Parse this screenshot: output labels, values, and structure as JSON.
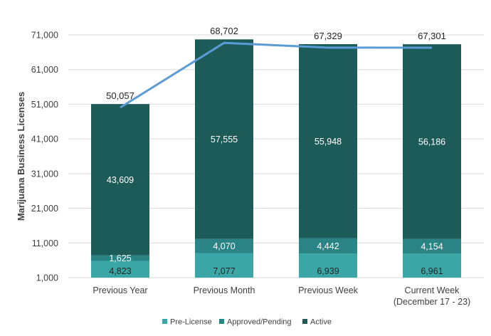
{
  "chart_data": {
    "type": "bar",
    "stacked": true,
    "categories": [
      [
        "Previous Year"
      ],
      [
        "Previous Month"
      ],
      [
        "Previous Week"
      ],
      [
        "Current Week",
        "(December 17 - 23)"
      ]
    ],
    "series": [
      {
        "name": "Pre-License",
        "color": "#3aa6a6",
        "label_color": "#262626",
        "values": [
          4823,
          7077,
          6939,
          6961
        ],
        "labels": [
          "4,823",
          "7,077",
          "6,939",
          "6,961"
        ]
      },
      {
        "name": "Approved/Pending",
        "color": "#2a8486",
        "label_color": "#ffffff",
        "values": [
          1625,
          4070,
          4442,
          4154
        ],
        "labels": [
          "1,625",
          "4,070",
          "4,442",
          "4,154"
        ]
      },
      {
        "name": "Active",
        "color": "#1d5b58",
        "label_color": "#ffffff",
        "values": [
          43609,
          57555,
          55948,
          56186
        ],
        "labels": [
          "43,609",
          "57,555",
          "55,948",
          "56,186"
        ]
      }
    ],
    "totals": {
      "values": [
        50057,
        68702,
        67329,
        67301
      ],
      "labels": [
        "50,057",
        "68,702",
        "67,329",
        "67,301"
      ],
      "line_color": "#5b9bd5"
    },
    "ylabel": "Marijuana Business Licenses",
    "ylim": [
      1000,
      71000
    ],
    "yticks": [
      1000,
      11000,
      21000,
      31000,
      41000,
      51000,
      61000,
      71000
    ],
    "ytick_labels": [
      "1,000",
      "11,000",
      "21,000",
      "31,000",
      "41,000",
      "51,000",
      "61,000",
      "71,000"
    ],
    "grid": true,
    "legend_position": "bottom"
  }
}
